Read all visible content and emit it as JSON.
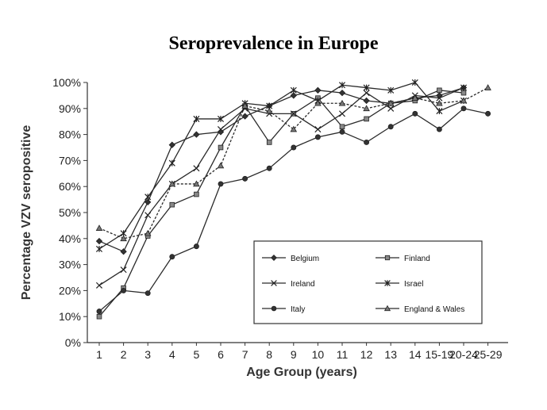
{
  "chart_data": {
    "type": "line",
    "title": "Seroprevalence in Europe",
    "xlabel": "Age Group (years)",
    "ylabel": "Percentage VZV seropositive",
    "categories": [
      "1",
      "2",
      "3",
      "4",
      "5",
      "6",
      "7",
      "8",
      "9",
      "10",
      "11",
      "12",
      "13",
      "14",
      "15-19",
      "20-24",
      "25-29"
    ],
    "y_ticks": [
      "0%",
      "10%",
      "20%",
      "30%",
      "40%",
      "50%",
      "60%",
      "70%",
      "80%",
      "90%",
      "100%"
    ],
    "ylim": [
      0,
      100
    ],
    "grid": false,
    "legend_position": "bottom-right",
    "series": [
      {
        "name": "Belgium",
        "marker": "diamond",
        "values": [
          39,
          35,
          54,
          76,
          80,
          81,
          87,
          91,
          95,
          97,
          96,
          93,
          92,
          94,
          95,
          98,
          null
        ]
      },
      {
        "name": "Finland",
        "marker": "square",
        "values": [
          10,
          21,
          41,
          53,
          57,
          75,
          91,
          77,
          88,
          94,
          83,
          86,
          92,
          93,
          97,
          96,
          null
        ]
      },
      {
        "name": "Ireland",
        "marker": "x",
        "values": [
          22,
          28,
          49,
          61,
          67,
          82,
          90,
          88,
          88,
          82,
          88,
          96,
          90,
          95,
          94,
          98,
          null
        ]
      },
      {
        "name": "Israel",
        "marker": "star",
        "values": [
          36,
          42,
          56,
          69,
          86,
          86,
          92,
          91,
          97,
          93,
          99,
          98,
          97,
          100,
          89,
          93,
          null
        ]
      },
      {
        "name": "Italy",
        "marker": "circle",
        "values": [
          12,
          20,
          19,
          33,
          37,
          61,
          63,
          67,
          75,
          79,
          81,
          77,
          83,
          88,
          82,
          90,
          88
        ]
      },
      {
        "name": "England & Wales",
        "marker": "triangle",
        "values": [
          44,
          40,
          42,
          61,
          61,
          68,
          91,
          89,
          82,
          92,
          92,
          90,
          92,
          94,
          92,
          93,
          98
        ]
      }
    ]
  }
}
